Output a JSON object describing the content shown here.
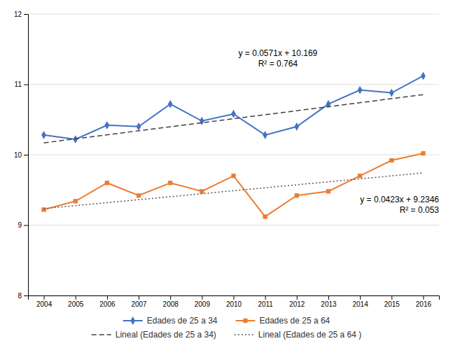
{
  "chart_data": {
    "type": "line",
    "x": [
      2004,
      2005,
      2006,
      2007,
      2008,
      2009,
      2010,
      2011,
      2012,
      2013,
      2014,
      2015,
      2016
    ],
    "series": [
      {
        "name": "Edades de 25 a 34",
        "color": "#4472C4",
        "marker": "diamond",
        "line_style": "solid",
        "values": [
          10.28,
          10.22,
          10.42,
          10.4,
          10.72,
          10.48,
          10.58,
          10.28,
          10.4,
          10.72,
          10.92,
          10.88,
          11.12
        ]
      },
      {
        "name": "Edades de 25 a 64",
        "color": "#ED7D31",
        "marker": "square",
        "line_style": "solid",
        "values": [
          9.22,
          9.34,
          9.6,
          9.42,
          9.6,
          9.48,
          9.7,
          9.12,
          9.42,
          9.48,
          9.7,
          9.92,
          10.02
        ]
      },
      {
        "name": "Lineal (Edades de 25 a 34)",
        "color": "#404040",
        "line_style": "dashed",
        "x": [
          2004,
          2016
        ],
        "values": [
          10.169,
          10.8542
        ]
      },
      {
        "name": "Lineal (Edades de 25 a 64 )",
        "color": "#555555",
        "line_style": "dotted",
        "x": [
          2004,
          2016
        ],
        "values": [
          9.2346,
          9.7422
        ]
      }
    ],
    "annotations": [
      {
        "text": [
          "y = 0.0571x + 10.169",
          "R² = 0.764"
        ]
      },
      {
        "text": [
          "y = 0.0423x + 9.2346",
          "R² = 0.053"
        ]
      }
    ],
    "xlim": [
      2003.5,
      2016.5
    ],
    "xticks": [
      2004,
      2005,
      2006,
      2007,
      2008,
      2009,
      2010,
      2011,
      2012,
      2013,
      2014,
      2015,
      2016
    ],
    "ylim": [
      8,
      12
    ],
    "yticks": [
      8,
      9,
      10,
      11,
      12
    ],
    "grid": true,
    "legend": "bottom"
  }
}
